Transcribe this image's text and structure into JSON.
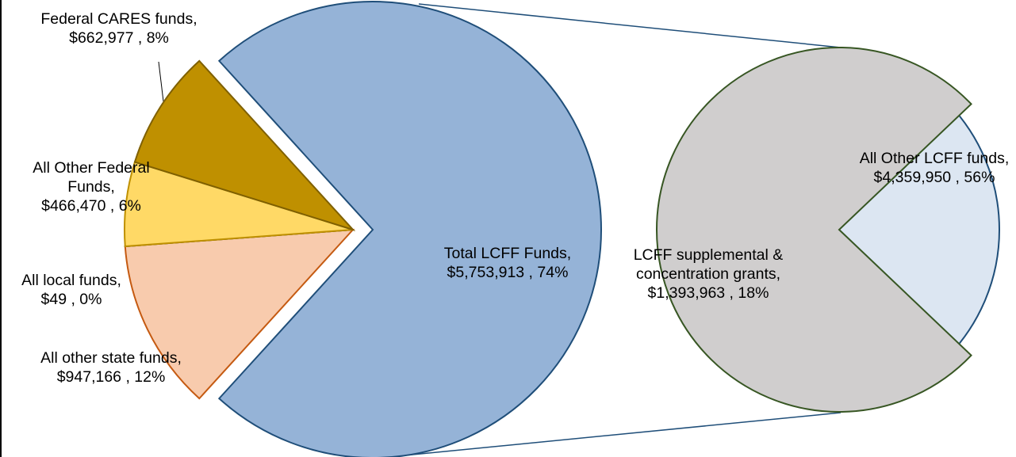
{
  "chart_data": [
    {
      "type": "pie",
      "categories": [
        "Total LCFF Funds,",
        "All other state funds,",
        "All local funds,",
        "All Other Federal Funds,",
        "Federal CARES funds,"
      ],
      "values": [
        5753913,
        947166,
        49,
        466470,
        662977
      ],
      "value_labels": [
        "$5,753,913 , 74%",
        "$947,166 , 12%",
        "$49 , 0%",
        "$466,470 , 6%",
        "$662,977 , 8%"
      ],
      "colors": [
        "#95b3d7",
        "#f8cbad",
        "#548235",
        "#ffd966",
        "#bf9000"
      ]
    },
    {
      "type": "pie",
      "categories": [
        "LCFF supplemental & concentration grants,",
        "All Other LCFF funds,"
      ],
      "values": [
        1393963,
        4359950
      ],
      "value_labels": [
        "$1,393,963 , 18%",
        "$4,359,950 , 56%"
      ],
      "colors": [
        "#dce6f2",
        "#d0cece"
      ]
    }
  ]
}
